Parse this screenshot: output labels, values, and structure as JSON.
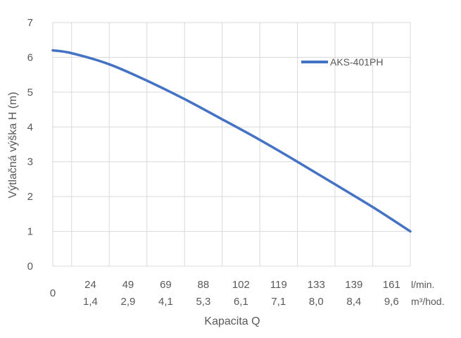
{
  "chart_data": {
    "type": "line",
    "title": "",
    "xlabel": "Kapacita Q",
    "ylabel": "Výtlačná výška H (m)",
    "ylim": [
      0,
      7
    ],
    "yticks": [
      "0",
      "1",
      "2",
      "3",
      "4",
      "5",
      "6",
      "7"
    ],
    "x_origin_label": "0",
    "categories_lmin": [
      "24",
      "49",
      "69",
      "88",
      "102",
      "119",
      "133",
      "139",
      "161"
    ],
    "categories_m3h": [
      "1,4",
      "2,9",
      "4,1",
      "5,3",
      "6,1",
      "7,1",
      "8,0",
      "8,4",
      "9,6"
    ],
    "unit_lmin": "l/min.",
    "unit_m3h": "m³/hod.",
    "grid": true,
    "legend_position": "top-right",
    "series": [
      {
        "name": "AKS-401PH",
        "color": "#4472c4",
        "x": [
          0,
          0.5,
          1.5,
          2.5,
          3.5,
          4.5,
          5.5,
          6.5,
          7.5,
          8.5,
          9.5
        ],
        "values": [
          6.2,
          6.12,
          5.8,
          5.33,
          4.8,
          4.22,
          3.63,
          3.0,
          2.35,
          1.7,
          1.0
        ]
      }
    ]
  }
}
